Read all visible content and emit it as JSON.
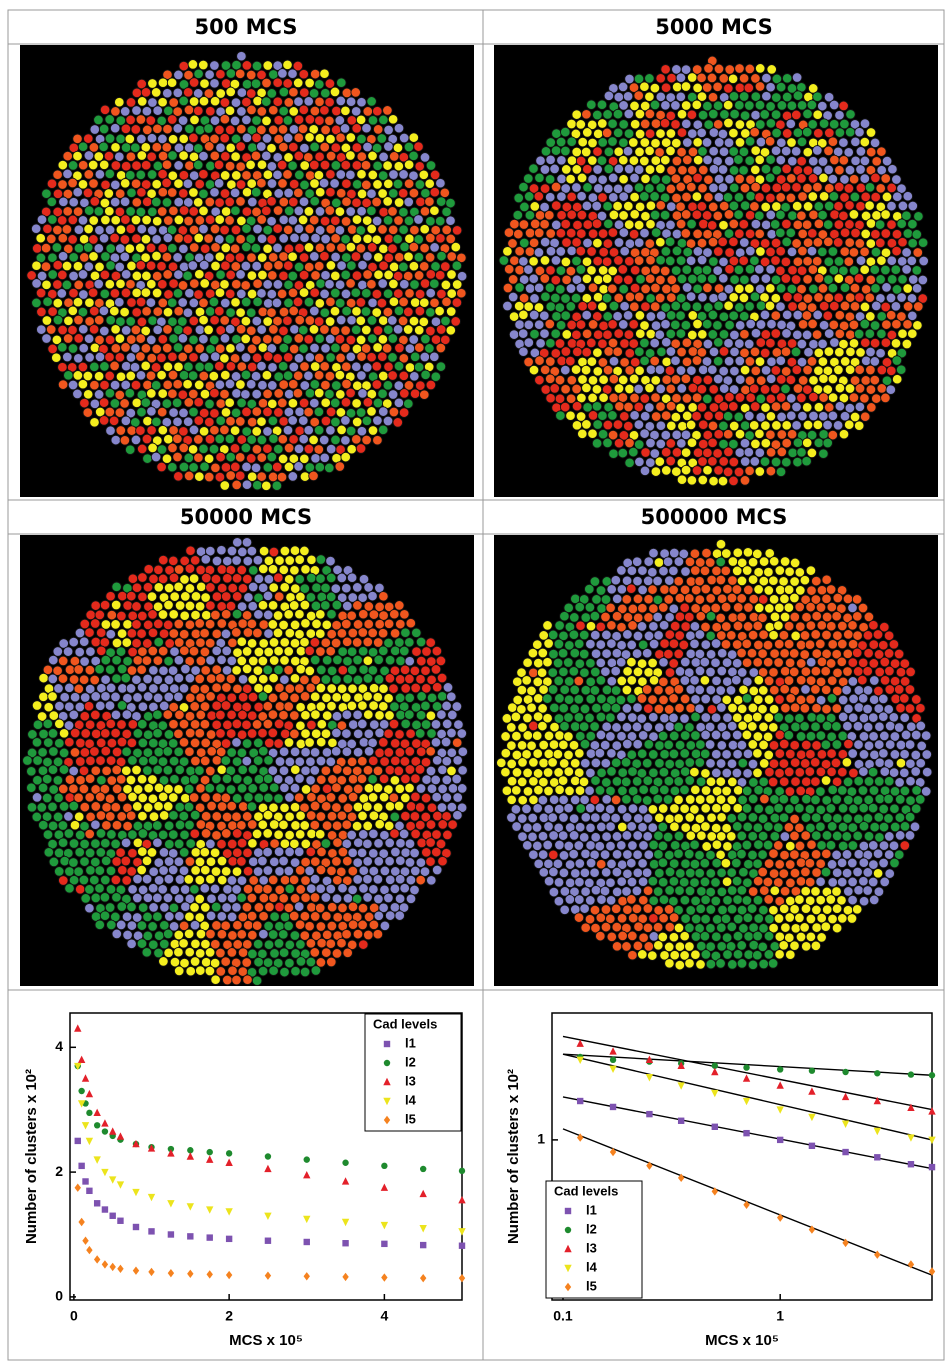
{
  "panels": [
    {
      "title": "500 MCS"
    },
    {
      "title": "5000 MCS"
    },
    {
      "title": "50000 MCS"
    },
    {
      "title": "500000 MCS"
    }
  ],
  "chart_data": [
    {
      "type": "scatter",
      "xlabel": "MCS x 10⁵",
      "ylabel": "Number of clusters x 10²",
      "xlim": [
        -0.05,
        5
      ],
      "ylim": [
        -0.05,
        4.55
      ],
      "xticks": [
        0,
        2,
        4
      ],
      "yticks": [
        0,
        2,
        4
      ],
      "legend_title": "Cad levels",
      "legend": "upper right",
      "x": [
        0.05,
        0.1,
        0.15,
        0.2,
        0.3,
        0.4,
        0.5,
        0.6,
        0.8,
        1,
        1.25,
        1.5,
        1.75,
        2,
        2.5,
        3,
        3.5,
        4,
        4.5,
        5
      ],
      "series": [
        {
          "name": "l1",
          "color": "#7d52b0",
          "marker": "square",
          "values": [
            2.5,
            2.1,
            1.85,
            1.7,
            1.5,
            1.4,
            1.3,
            1.22,
            1.12,
            1.05,
            1.0,
            0.97,
            0.95,
            0.93,
            0.9,
            0.88,
            0.86,
            0.85,
            0.83,
            0.82
          ]
        },
        {
          "name": "l2",
          "color": "#1e8a2e",
          "marker": "circle",
          "values": [
            3.7,
            3.3,
            3.1,
            2.95,
            2.75,
            2.65,
            2.58,
            2.52,
            2.45,
            2.4,
            2.37,
            2.35,
            2.32,
            2.3,
            2.25,
            2.2,
            2.15,
            2.1,
            2.05,
            2.02
          ]
        },
        {
          "name": "l3",
          "color": "#e3202a",
          "marker": "triangle",
          "values": [
            4.3,
            3.8,
            3.5,
            3.25,
            2.95,
            2.78,
            2.65,
            2.57,
            2.45,
            2.38,
            2.3,
            2.25,
            2.2,
            2.15,
            2.05,
            1.95,
            1.85,
            1.75,
            1.65,
            1.55
          ]
        },
        {
          "name": "l4",
          "color": "#ece41c",
          "marker": "triangle-down",
          "values": [
            3.7,
            3.1,
            2.75,
            2.5,
            2.2,
            2.0,
            1.88,
            1.8,
            1.68,
            1.6,
            1.5,
            1.45,
            1.4,
            1.37,
            1.3,
            1.25,
            1.2,
            1.15,
            1.1,
            1.05
          ]
        },
        {
          "name": "l5",
          "color": "#f5821f",
          "marker": "diamond",
          "values": [
            1.75,
            1.2,
            0.9,
            0.75,
            0.6,
            0.52,
            0.48,
            0.45,
            0.42,
            0.4,
            0.38,
            0.37,
            0.36,
            0.35,
            0.34,
            0.33,
            0.32,
            0.31,
            0.3,
            0.3
          ]
        }
      ]
    },
    {
      "type": "scatter",
      "xlabel": "MCS x 10⁵",
      "ylabel": "Number of clusters x 10²",
      "xscale": "log",
      "yscale": "log",
      "xlim": [
        0.089,
        5
      ],
      "ylim": [
        0.25,
        3.0
      ],
      "xticks": [
        0.1,
        1
      ],
      "yticks": [
        1
      ],
      "legend_title": "Cad levels",
      "legend": "lower left",
      "x": [
        0.12,
        0.17,
        0.25,
        0.35,
        0.5,
        0.7,
        1,
        1.4,
        2,
        2.8,
        4,
        5
      ],
      "series": [
        {
          "name": "l1",
          "color": "#7d52b0",
          "marker": "square",
          "values": [
            1.4,
            1.33,
            1.25,
            1.18,
            1.12,
            1.06,
            1.0,
            0.95,
            0.9,
            0.86,
            0.81,
            0.79
          ]
        },
        {
          "name": "l2",
          "color": "#1e8a2e",
          "marker": "circle",
          "values": [
            2.05,
            2.0,
            1.97,
            1.94,
            1.9,
            1.87,
            1.84,
            1.82,
            1.8,
            1.78,
            1.76,
            1.75
          ]
        },
        {
          "name": "l3",
          "color": "#e3202a",
          "marker": "triangle",
          "values": [
            2.3,
            2.15,
            2.0,
            1.9,
            1.8,
            1.7,
            1.6,
            1.52,
            1.45,
            1.4,
            1.32,
            1.28
          ]
        },
        {
          "name": "l4",
          "color": "#ece41c",
          "marker": "triangle-down",
          "values": [
            2.0,
            1.85,
            1.72,
            1.6,
            1.5,
            1.4,
            1.3,
            1.22,
            1.15,
            1.08,
            1.02,
            1.0
          ]
        },
        {
          "name": "l5",
          "color": "#f5821f",
          "marker": "diamond",
          "values": [
            1.02,
            0.9,
            0.8,
            0.72,
            0.64,
            0.57,
            0.51,
            0.46,
            0.41,
            0.37,
            0.34,
            0.32
          ]
        }
      ],
      "fits": [
        {
          "x": [
            0.1,
            5
          ],
          "values": [
            2.45,
            1.3
          ]
        },
        {
          "x": [
            0.1,
            5
          ],
          "values": [
            2.1,
            1.75
          ]
        },
        {
          "x": [
            0.1,
            5
          ],
          "values": [
            2.1,
            1.0
          ]
        },
        {
          "x": [
            0.1,
            5
          ],
          "values": [
            1.45,
            0.78
          ]
        },
        {
          "x": [
            0.1,
            5
          ],
          "values": [
            1.1,
            0.31
          ]
        }
      ]
    }
  ]
}
